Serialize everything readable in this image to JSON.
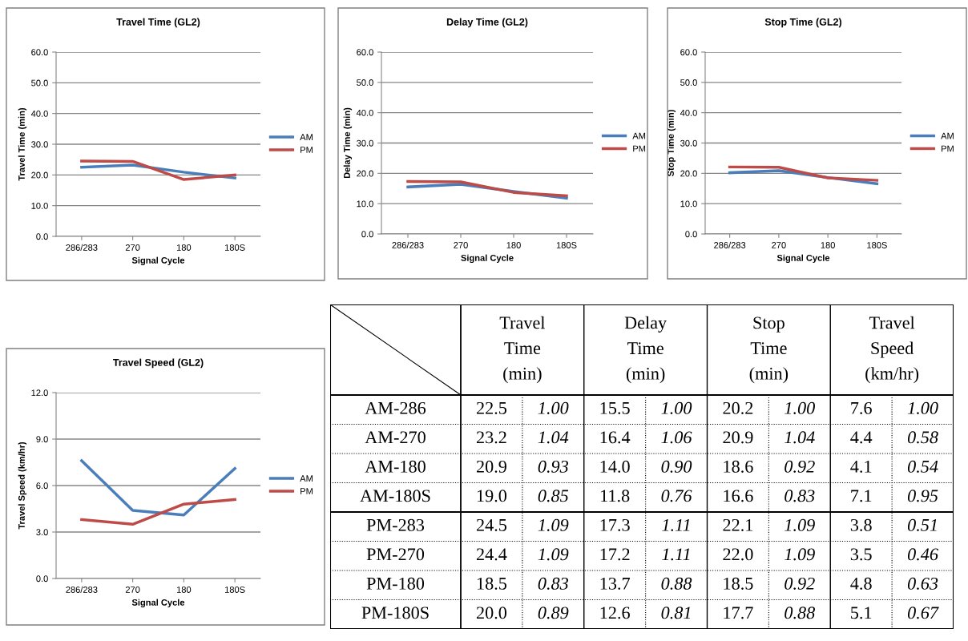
{
  "chart_data": [
    {
      "type": "line",
      "title": "Travel Time (GL2)",
      "xlabel": "Signal Cycle",
      "ylabel": "Travel Time (min)",
      "categories": [
        "286/283",
        "270",
        "180",
        "180S"
      ],
      "series": [
        {
          "name": "AM",
          "color": "#4a7ebb",
          "values": [
            22.5,
            23.2,
            20.9,
            19.0
          ]
        },
        {
          "name": "PM",
          "color": "#be4b48",
          "values": [
            24.5,
            24.4,
            18.5,
            20.0
          ]
        }
      ],
      "ylim": [
        0,
        60
      ],
      "yticks": [
        {
          "value": 0,
          "label": "0.0"
        },
        {
          "value": 10,
          "label": "10.0"
        },
        {
          "value": 20,
          "label": "20.0"
        },
        {
          "value": 30,
          "label": "30.0"
        },
        {
          "value": 40,
          "label": "40.0"
        },
        {
          "value": 50,
          "label": "50.0"
        },
        {
          "value": 60,
          "label": "60.0"
        }
      ],
      "grid": "y",
      "legend": "right",
      "marker": "none",
      "line_style": "solid"
    },
    {
      "type": "line",
      "title": "Delay Time (GL2)",
      "xlabel": "Signal Cycle",
      "ylabel": "Delay Time (min)",
      "categories": [
        "286/283",
        "270",
        "180",
        "180S"
      ],
      "series": [
        {
          "name": "AM",
          "color": "#4a7ebb",
          "values": [
            15.5,
            16.4,
            14.0,
            11.8
          ]
        },
        {
          "name": "PM",
          "color": "#be4b48",
          "values": [
            17.3,
            17.2,
            13.7,
            12.6
          ]
        }
      ],
      "ylim": [
        0,
        60
      ],
      "yticks": [
        {
          "value": 0,
          "label": "0.0"
        },
        {
          "value": 10,
          "label": "10.0"
        },
        {
          "value": 20,
          "label": "20.0"
        },
        {
          "value": 30,
          "label": "30.0"
        },
        {
          "value": 40,
          "label": "40.0"
        },
        {
          "value": 50,
          "label": "50.0"
        },
        {
          "value": 60,
          "label": "60.0"
        }
      ],
      "grid": "y",
      "legend": "right",
      "marker": "none",
      "line_style": "solid"
    },
    {
      "type": "line",
      "title": "Stop Time (GL2)",
      "xlabel": "Signal Cycle",
      "ylabel": "Stop Time (min)",
      "categories": [
        "286/283",
        "270",
        "180",
        "180S"
      ],
      "series": [
        {
          "name": "AM",
          "color": "#4a7ebb",
          "values": [
            20.2,
            20.9,
            18.6,
            16.6
          ]
        },
        {
          "name": "PM",
          "color": "#be4b48",
          "values": [
            22.1,
            22.0,
            18.5,
            17.7
          ]
        }
      ],
      "ylim": [
        0,
        60
      ],
      "yticks": [
        {
          "value": 0,
          "label": "0.0"
        },
        {
          "value": 10,
          "label": "10.0"
        },
        {
          "value": 20,
          "label": "20.0"
        },
        {
          "value": 30,
          "label": "30.0"
        },
        {
          "value": 40,
          "label": "40.0"
        },
        {
          "value": 50,
          "label": "50.0"
        },
        {
          "value": 60,
          "label": "60.0"
        }
      ],
      "grid": "y",
      "legend": "right",
      "marker": "none",
      "line_style": "solid"
    },
    {
      "type": "line",
      "title": "Travel Speed (GL2)",
      "xlabel": "Signal Cycle",
      "ylabel": "Travel Speed (km/hr)",
      "categories": [
        "286/283",
        "270",
        "180",
        "180S"
      ],
      "series": [
        {
          "name": "AM",
          "color": "#4a7ebb",
          "values": [
            7.6,
            4.4,
            4.1,
            7.1
          ]
        },
        {
          "name": "PM",
          "color": "#be4b48",
          "values": [
            3.8,
            3.5,
            4.8,
            5.1
          ]
        }
      ],
      "ylim": [
        0,
        12
      ],
      "yticks": [
        {
          "value": 0,
          "label": "0.0"
        },
        {
          "value": 3,
          "label": "3.0"
        },
        {
          "value": 6,
          "label": "6.0"
        },
        {
          "value": 9,
          "label": "9.0"
        },
        {
          "value": 12,
          "label": "12.0"
        }
      ],
      "grid": "y",
      "legend": "right",
      "marker": "none",
      "line_style": "solid"
    },
    {
      "type": "other",
      "annotations": [
        "Travel\nTime\n(min)",
        "Delay\nTime\n(min)",
        "Stop\nTime\n(min)",
        "Travel\nSpeed\n(km/hr)"
      ],
      "categories": [
        "AM-286",
        "AM-270",
        "AM-180",
        "AM-180S",
        "PM-283",
        "PM-270",
        "PM-180",
        "PM-180S"
      ],
      "series": [
        {
          "values": [
            22.5,
            23.2,
            20.9,
            19.0,
            24.5,
            24.4,
            18.5,
            20.0
          ],
          "value_labels": [
            "22.5",
            "23.2",
            "20.9",
            "19.0",
            "24.5",
            "24.4",
            "18.5",
            "20.0"
          ]
        },
        {
          "values": [
            1.0,
            1.04,
            0.93,
            0.85,
            1.09,
            1.09,
            0.83,
            0.89
          ],
          "value_labels": [
            "1.00",
            "1.04",
            "0.93",
            "0.85",
            "1.09",
            "1.09",
            "0.83",
            "0.89"
          ]
        },
        {
          "values": [
            15.5,
            16.4,
            14.0,
            11.8,
            17.3,
            17.2,
            13.7,
            12.6
          ],
          "value_labels": [
            "15.5",
            "16.4",
            "14.0",
            "11.8",
            "17.3",
            "17.2",
            "13.7",
            "12.6"
          ]
        },
        {
          "values": [
            1.0,
            1.06,
            0.9,
            0.76,
            1.11,
            1.11,
            0.88,
            0.81
          ],
          "value_labels": [
            "1.00",
            "1.06",
            "0.90",
            "0.76",
            "1.11",
            "1.11",
            "0.88",
            "0.81"
          ]
        },
        {
          "values": [
            20.2,
            20.9,
            18.6,
            16.6,
            22.1,
            22.0,
            18.5,
            17.7
          ],
          "value_labels": [
            "20.2",
            "20.9",
            "18.6",
            "16.6",
            "22.1",
            "22.0",
            "18.5",
            "17.7"
          ]
        },
        {
          "values": [
            1.0,
            1.04,
            0.92,
            0.83,
            1.09,
            1.09,
            0.92,
            0.88
          ],
          "value_labels": [
            "1.00",
            "1.04",
            "0.92",
            "0.83",
            "1.09",
            "1.09",
            "0.92",
            "0.88"
          ]
        },
        {
          "values": [
            7.6,
            4.4,
            4.1,
            7.1,
            3.8,
            3.5,
            4.8,
            5.1
          ],
          "value_labels": [
            "7.6",
            "4.4",
            "4.1",
            "7.1",
            "3.8",
            "3.5",
            "4.8",
            "5.1"
          ]
        },
        {
          "values": [
            1.0,
            0.58,
            0.54,
            0.95,
            0.51,
            0.46,
            0.63,
            0.67
          ],
          "value_labels": [
            "1.00",
            "0.58",
            "0.54",
            "0.95",
            "0.51",
            "0.46",
            "0.63",
            "0.67"
          ]
        }
      ]
    }
  ]
}
